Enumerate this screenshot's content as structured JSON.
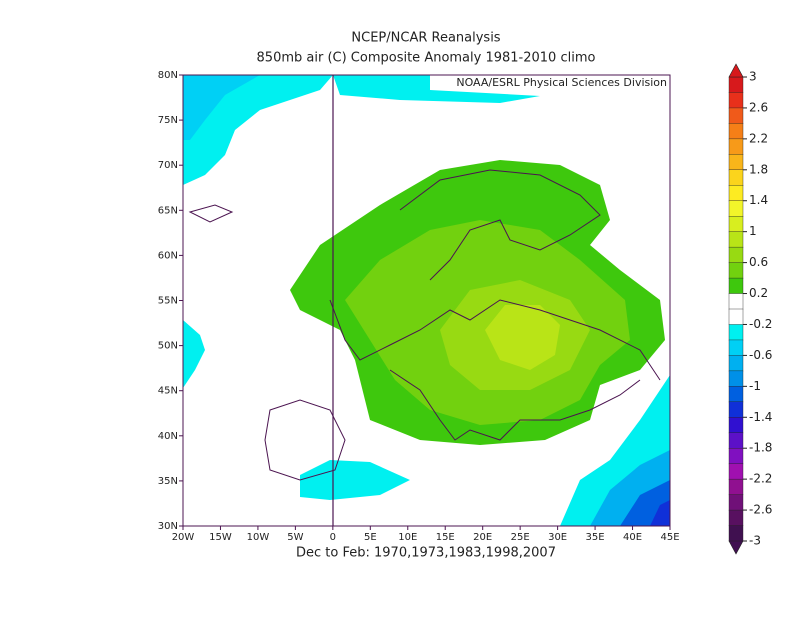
{
  "title": "NCEP/NCAR Reanalysis",
  "subtitle": "850mb air (C) Composite Anomaly 1981-2010 climo",
  "credit": "NOAA/ESRL Physical Sciences Division",
  "footer": "Dec to Feb: 1970,1973,1983,1998,2007",
  "map": {
    "xlim": [
      -20,
      45
    ],
    "ylim": [
      30,
      80
    ],
    "xticks": [
      {
        "value": -20,
        "label": "20W"
      },
      {
        "value": -15,
        "label": "15W"
      },
      {
        "value": -10,
        "label": "10W"
      },
      {
        "value": -5,
        "label": "5W"
      },
      0,
      {
        "value": 5,
        "label": "5E"
      },
      {
        "value": 10,
        "label": "10E"
      },
      {
        "value": 15,
        "label": "15E"
      },
      {
        "value": 20,
        "label": "20E"
      },
      {
        "value": 25,
        "label": "25E"
      },
      {
        "value": 30,
        "label": "30E"
      },
      {
        "value": 35,
        "label": "35E"
      },
      {
        "value": 40,
        "label": "40E"
      },
      {
        "value": 45,
        "label": "45E"
      }
    ],
    "yticks": [
      {
        "value": 30,
        "label": "30N"
      },
      {
        "value": 35,
        "label": "35N"
      },
      {
        "value": 40,
        "label": "40N"
      },
      {
        "value": 45,
        "label": "45N"
      },
      {
        "value": 50,
        "label": "50N"
      },
      {
        "value": 55,
        "label": "55N"
      },
      {
        "value": 60,
        "label": "60N"
      },
      {
        "value": 65,
        "label": "65N"
      },
      {
        "value": 70,
        "label": "70N"
      },
      {
        "value": 75,
        "label": "75N"
      },
      {
        "value": 80,
        "label": "80N"
      }
    ]
  },
  "colorbar": {
    "range": [
      -3,
      3
    ],
    "ticks": [
      3,
      2.6,
      2.2,
      1.8,
      1.4,
      1,
      0.6,
      0.2,
      -0.2,
      -0.6,
      -1,
      -1.4,
      -1.8,
      -2.2,
      -2.6,
      -3
    ],
    "colors": [
      "#d7191c",
      "#e8301b",
      "#f05a1a",
      "#f57f17",
      "#f79a19",
      "#f9b51a",
      "#fbd41c",
      "#fdeb22",
      "#f2f52a",
      "#d8ee1f",
      "#b9e417",
      "#98da12",
      "#72d10f",
      "#3ec80d",
      "#ffffff",
      "#ffffff",
      "#00f0f0",
      "#00d0f5",
      "#00b0f0",
      "#0090e8",
      "#0060e0",
      "#1030d8",
      "#3010d0",
      "#5c10c8",
      "#8010c0",
      "#a010b0",
      "#901090",
      "#701078",
      "#581060",
      "#401050"
    ]
  }
}
